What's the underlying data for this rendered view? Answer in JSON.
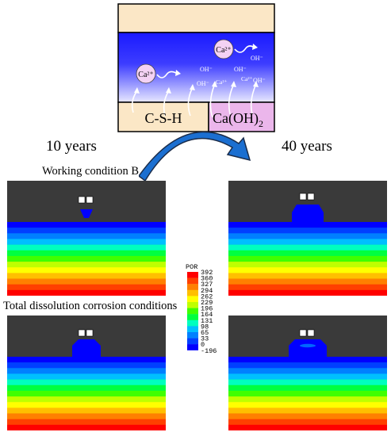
{
  "schematic": {
    "ions_top": [
      "Ca²⁺",
      "Ca²⁺"
    ],
    "oh_small": [
      "OH⁻",
      "OH⁻",
      "OH⁻",
      "OH⁻",
      "OH⁻"
    ],
    "ca_small": [
      "Ca²⁺",
      "Ca²⁺"
    ],
    "csh_label": "C-S-H",
    "caoh2_label": "Ca(OH)",
    "caoh2_sub": "2"
  },
  "labels": {
    "years_10": "10 years",
    "years_40": "40 years",
    "condition_b": "Working condition B",
    "total_dissolution": "Total dissolution corrosion conditions"
  },
  "legend": {
    "title": "POR",
    "values": [
      "392",
      "360",
      "327",
      "294",
      "262",
      "229",
      "196",
      "164",
      "131",
      "98",
      "65",
      "33",
      "0",
      "-196"
    ],
    "colors": [
      "#ff0000",
      "#ff4000",
      "#ff8000",
      "#ffbf00",
      "#ffff00",
      "#bfff00",
      "#40ff00",
      "#00ff40",
      "#00ffbf",
      "#00bfff",
      "#0080ff",
      "#0040ff",
      "#0000ff"
    ]
  },
  "bands": {
    "colors": [
      "#0000ff",
      "#0040ff",
      "#0080ff",
      "#00bfff",
      "#00ffbf",
      "#00ff40",
      "#40ff00",
      "#bfff00",
      "#ffff00",
      "#ffbf00",
      "#ff8000",
      "#ff4000",
      "#ff0000"
    ]
  },
  "colors": {
    "background_dark": "#3a3a3a",
    "csh_fill": "#fbe7c6",
    "caoh2_fill": "#ebb6eb",
    "solution_top": "#1a1aff",
    "arrow_blue": "#1b6fd1",
    "arrow_dark": "#1a2c4a"
  }
}
